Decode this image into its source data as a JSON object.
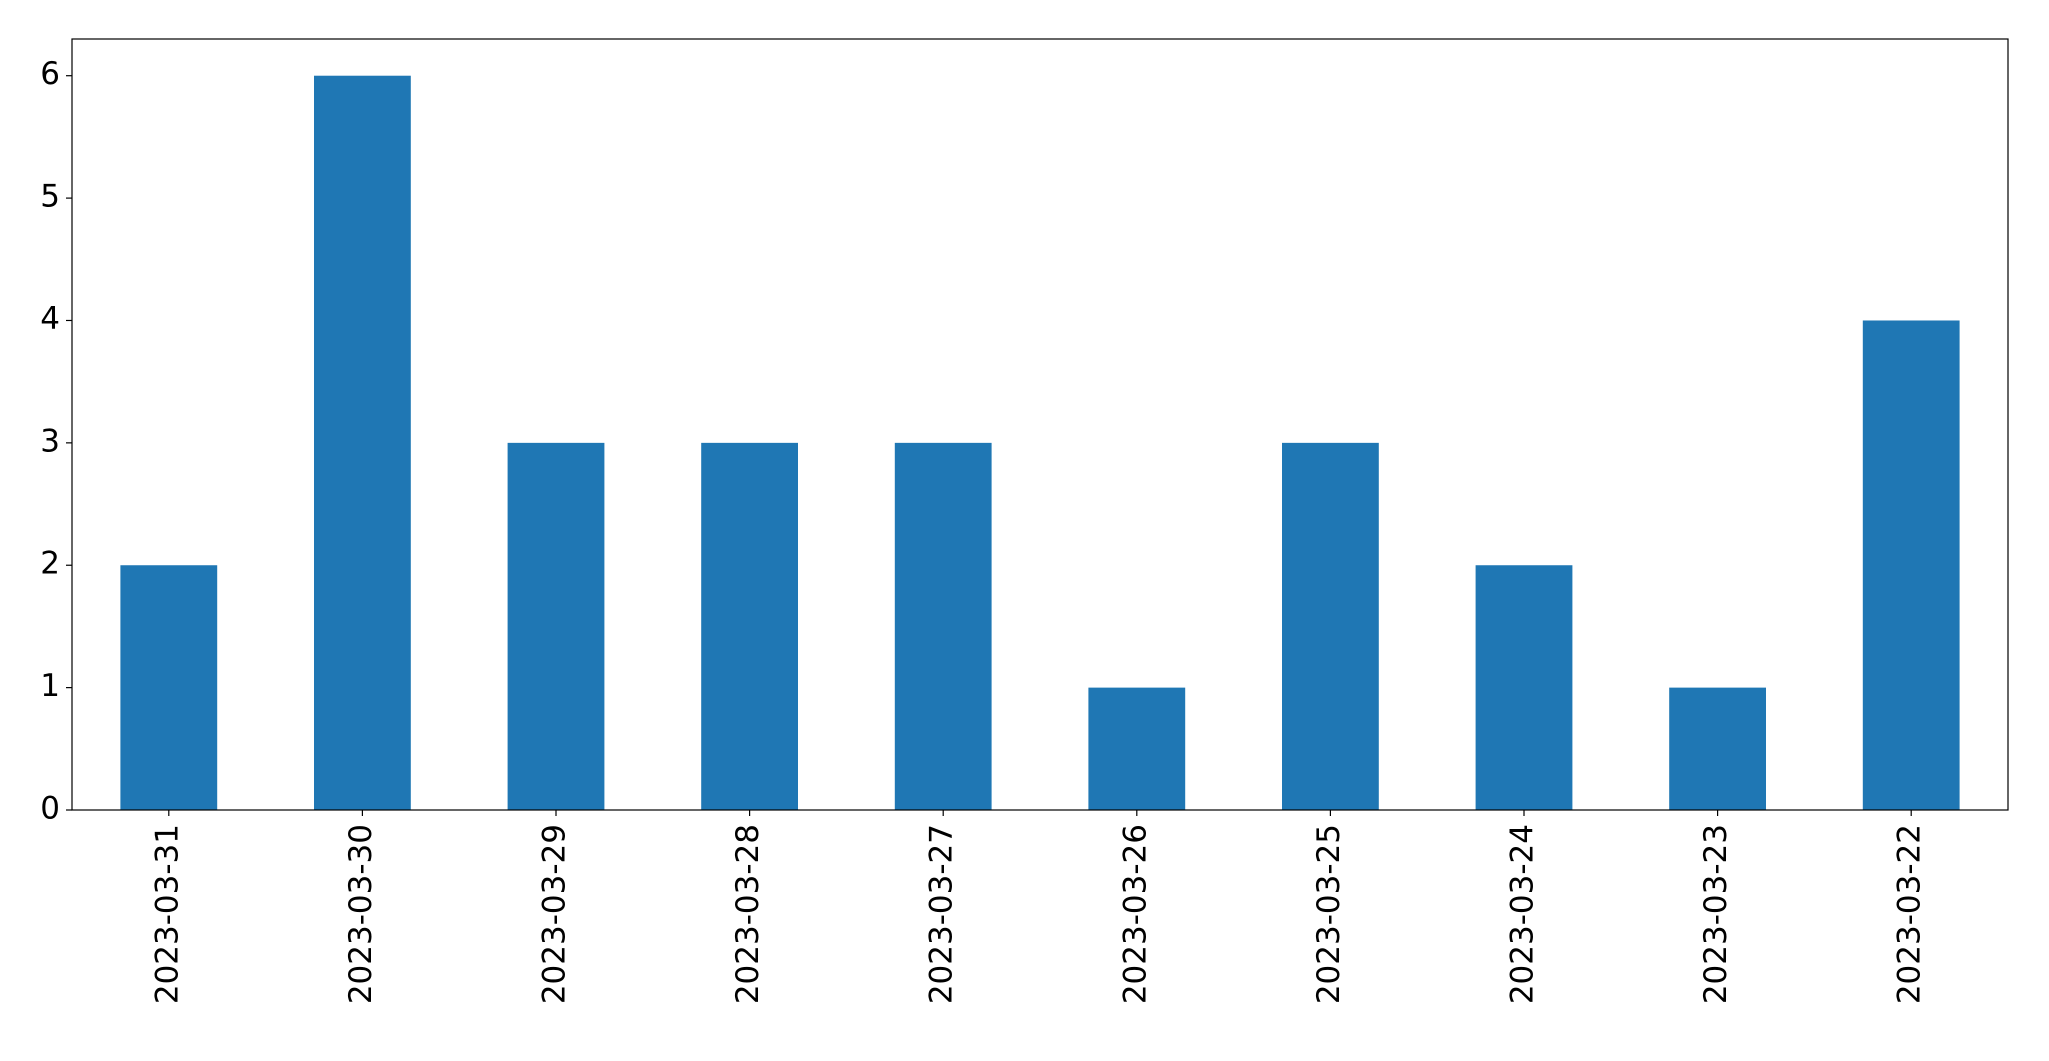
{
  "chart_data": {
    "type": "bar",
    "categories": [
      "2023-03-31",
      "2023-03-30",
      "2023-03-29",
      "2023-03-28",
      "2023-03-27",
      "2023-03-26",
      "2023-03-25",
      "2023-03-24",
      "2023-03-23",
      "2023-03-22"
    ],
    "values": [
      2,
      6,
      3,
      3,
      3,
      1,
      3,
      2,
      1,
      4
    ],
    "color": "#1f77b4",
    "ylim": [
      0,
      6.3
    ],
    "yticks": [
      0,
      1,
      2,
      3,
      4,
      5,
      6
    ],
    "grid": false
  }
}
